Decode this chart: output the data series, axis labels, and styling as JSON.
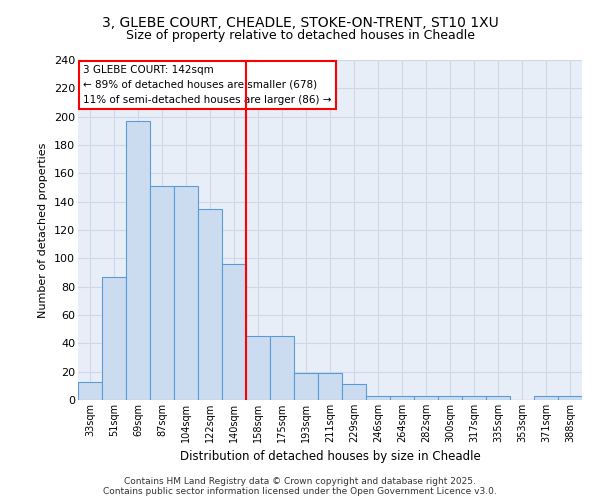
{
  "title_line1": "3, GLEBE COURT, CHEADLE, STOKE-ON-TRENT, ST10 1XU",
  "title_line2": "Size of property relative to detached houses in Cheadle",
  "xlabel": "Distribution of detached houses by size in Cheadle",
  "ylabel": "Number of detached properties",
  "categories": [
    "33sqm",
    "51sqm",
    "69sqm",
    "87sqm",
    "104sqm",
    "122sqm",
    "140sqm",
    "158sqm",
    "175sqm",
    "193sqm",
    "211sqm",
    "229sqm",
    "246sqm",
    "264sqm",
    "282sqm",
    "300sqm",
    "317sqm",
    "335sqm",
    "353sqm",
    "371sqm",
    "388sqm"
  ],
  "values": [
    13,
    87,
    197,
    151,
    151,
    135,
    96,
    45,
    45,
    19,
    19,
    11,
    3,
    3,
    3,
    3,
    3,
    3,
    0,
    3,
    3
  ],
  "bar_color": "#ccdcf0",
  "bar_edge_color": "#5b9bd5",
  "grid_color": "#d0d8e8",
  "background_color": "#e8eef8",
  "vline_color": "red",
  "vline_x": 6.5,
  "annotation_text": "3 GLEBE COURT: 142sqm\n← 89% of detached houses are smaller (678)\n11% of semi-detached houses are larger (86) →",
  "annotation_box_color": "white",
  "annotation_box_edge": "red",
  "footnote": "Contains HM Land Registry data © Crown copyright and database right 2025.\nContains public sector information licensed under the Open Government Licence v3.0.",
  "ylim": [
    0,
    240
  ],
  "yticks": [
    0,
    20,
    40,
    60,
    80,
    100,
    120,
    140,
    160,
    180,
    200,
    220,
    240
  ]
}
